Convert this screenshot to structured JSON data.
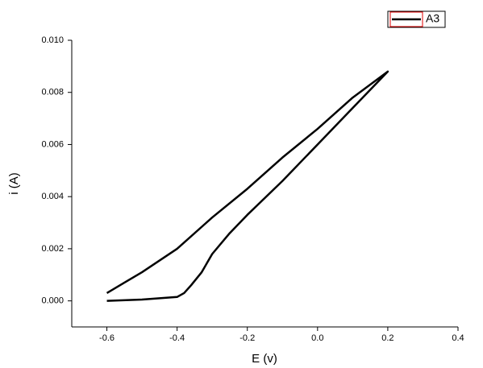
{
  "chart_data": {
    "type": "line",
    "x_label": "E (v)",
    "y_label": "i (A)",
    "x": [
      -0.6,
      -0.5,
      -0.4,
      -0.38,
      -0.36,
      -0.33,
      -0.3,
      -0.25,
      -0.2,
      -0.1,
      0.0,
      0.1,
      0.2,
      0.1,
      0.0,
      -0.1,
      -0.2,
      -0.3,
      -0.4,
      -0.5,
      -0.55,
      -0.6
    ],
    "series": [
      {
        "name": "A3",
        "color": "#000000",
        "values": [
          0.0,
          5e-05,
          0.00015,
          0.0003,
          0.0006,
          0.0011,
          0.0018,
          0.0026,
          0.0033,
          0.0046,
          0.006,
          0.0074,
          0.0088,
          0.0078,
          0.0066,
          0.0055,
          0.0043,
          0.0032,
          0.002,
          0.0011,
          0.0007,
          0.0003
        ]
      }
    ],
    "xlim": [
      -0.7,
      0.4
    ],
    "xticks": [
      -0.6,
      -0.4,
      -0.2,
      {
        "value": 0,
        "label": "0.0"
      },
      0.2,
      0.4
    ],
    "ylim": [
      -0.001,
      0.01
    ],
    "yticks": [
      {
        "value": 0,
        "label": "0.000"
      },
      0.002,
      0.004,
      0.006,
      0.008,
      {
        "value": 0.01,
        "label": "0.010"
      }
    ],
    "legend": "top-right"
  }
}
